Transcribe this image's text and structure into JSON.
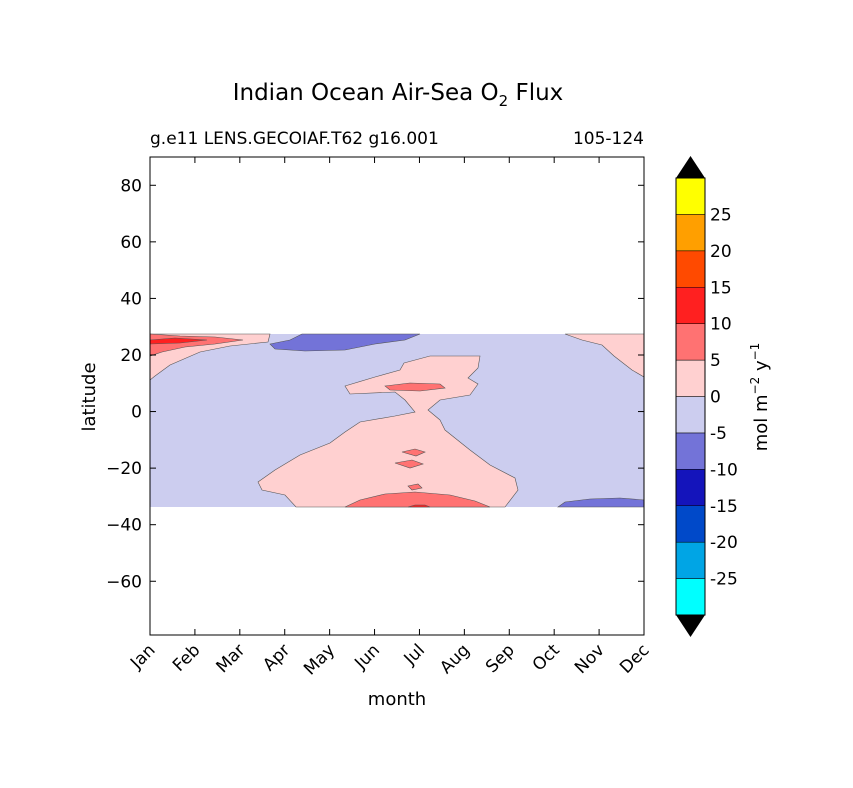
{
  "chart_data": {
    "type": "heatmap",
    "title": "Indian Ocean Air-Sea O",
    "title_sub": "2",
    "title_end": " Flux",
    "subtitle_left": "g.e11 LENS.GECOIAF.T62 g16.001",
    "subtitle_right": "105-124",
    "xlabel": "month",
    "ylabel": "latitude",
    "x_categories": [
      "Jan",
      "Feb",
      "Mar",
      "Apr",
      "May",
      "Jun",
      "Jul",
      "Aug",
      "Sep",
      "Oct",
      "Nov",
      "Dec"
    ],
    "y_ticks": [
      "80",
      "60",
      "40",
      "20",
      "0",
      "−20",
      "−40",
      "−60"
    ],
    "y_tick_values": [
      80,
      60,
      40,
      20,
      0,
      -20,
      -40,
      -60
    ],
    "ylim": [
      -79,
      90
    ],
    "data_lat_range": [
      -34,
      27
    ],
    "colorbar": {
      "label": "mol m",
      "label_sup1": "−2",
      "label_mid": " y",
      "label_sup2": "−1",
      "levels": [
        -30,
        -25,
        -20,
        -15,
        -10,
        -5,
        0,
        5,
        10,
        15,
        20,
        25,
        30
      ],
      "tick_labels": [
        "25",
        "20",
        "15",
        "10",
        "5",
        "0",
        "-5",
        "-10",
        "-15",
        "-20",
        "-25"
      ],
      "tick_values": [
        25,
        20,
        15,
        10,
        5,
        0,
        -5,
        -10,
        -15,
        -20,
        -25
      ],
      "colors": [
        "#00ffff",
        "#00a5e5",
        "#0049c9",
        "#1414bb",
        "#7373d8",
        "#cccdef",
        "#ffd0d0",
        "#ff7272",
        "#ff2020",
        "#ff4a00",
        "#ff9f00",
        "#ffff00"
      ],
      "extend_color": "#000000"
    },
    "colors": {
      "neg5_0": "#cccdef",
      "neg10_neg5": "#7373d8",
      "pos0_5": "#ffd0d0",
      "pos5_10": "#ff7272",
      "pos10_15": "#ff2020"
    }
  }
}
